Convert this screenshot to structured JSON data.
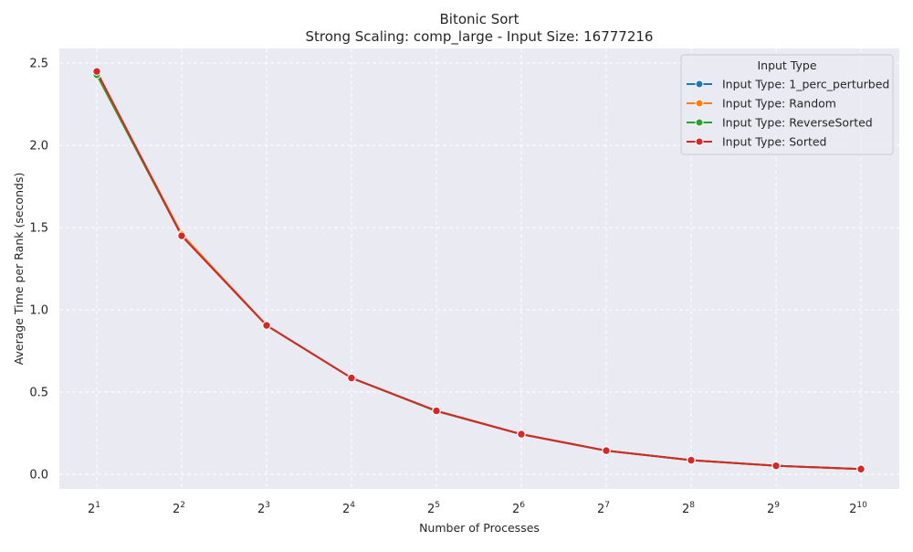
{
  "chart_data": {
    "type": "line",
    "title": "Bitonic Sort",
    "subtitle": "Strong Scaling: comp_large - Input Size: 16777216",
    "xlabel": "Number of Processes",
    "ylabel": "Average Time per Rank (seconds)",
    "x_scale": "log2",
    "x": [
      2,
      4,
      8,
      16,
      32,
      64,
      128,
      256,
      512,
      1024
    ],
    "x_tick_labels": [
      {
        "base": "2",
        "exp": "1"
      },
      {
        "base": "2",
        "exp": "2"
      },
      {
        "base": "2",
        "exp": "3"
      },
      {
        "base": "2",
        "exp": "4"
      },
      {
        "base": "2",
        "exp": "5"
      },
      {
        "base": "2",
        "exp": "6"
      },
      {
        "base": "2",
        "exp": "7"
      },
      {
        "base": "2",
        "exp": "8"
      },
      {
        "base": "2",
        "exp": "9"
      },
      {
        "base": "2",
        "exp": "10"
      }
    ],
    "y_ticks": [
      "0.0",
      "0.5",
      "1.0",
      "1.5",
      "2.0",
      "2.5"
    ],
    "ylim": [
      -0.09,
      2.59
    ],
    "grid": true,
    "legend": {
      "title": "Input Type",
      "placement": "top-right"
    },
    "series": [
      {
        "name": "Input Type: 1_perc_perturbed",
        "color": "#1f77b4",
        "values": [
          2.44,
          1.45,
          0.905,
          0.585,
          0.385,
          0.243,
          0.143,
          0.085,
          0.051,
          0.031
        ]
      },
      {
        "name": "Input Type: Random",
        "color": "#ff7f0e",
        "values": [
          2.44,
          1.46,
          0.905,
          0.585,
          0.385,
          0.243,
          0.143,
          0.085,
          0.051,
          0.031
        ]
      },
      {
        "name": "Input Type: ReverseSorted",
        "color": "#2ca02c",
        "values": [
          2.43,
          1.45,
          0.905,
          0.585,
          0.383,
          0.243,
          0.143,
          0.085,
          0.051,
          0.031
        ]
      },
      {
        "name": "Input Type: Sorted",
        "color": "#d62728",
        "values": [
          2.45,
          1.45,
          0.905,
          0.585,
          0.385,
          0.243,
          0.143,
          0.085,
          0.051,
          0.031
        ]
      }
    ]
  }
}
